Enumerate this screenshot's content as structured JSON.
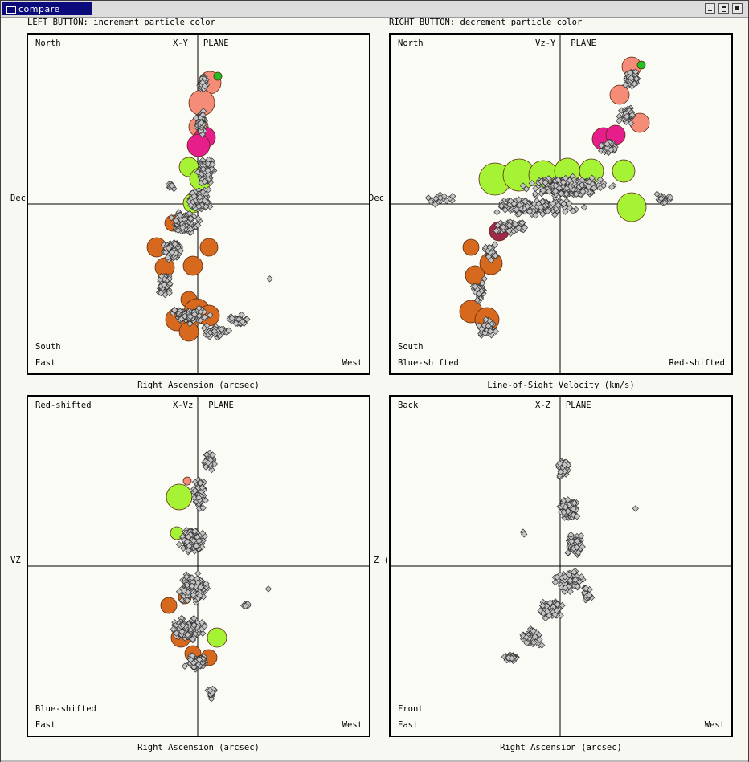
{
  "window": {
    "title": "compare"
  },
  "hints": {
    "left": "LEFT BUTTON: increment particle color",
    "right": "RIGHT BUTTON: decrement particle color"
  },
  "panels": [
    {
      "plane": "X-Y   PLANE",
      "tl": "North",
      "bl1": "South",
      "bl2": "East",
      "br": "West",
      "side": "Dec",
      "axis": "Right Ascension (arcsec)"
    },
    {
      "plane": "Vz-Y   PLANE",
      "tl": "North",
      "bl1": "South",
      "bl2": "Blue-shifted",
      "br": "Red-shifted",
      "side": "Dec",
      "axis": "Line-of-Sight Velocity (km/s)"
    },
    {
      "plane": "X-Vz   PLANE",
      "tl": "Red-shifted",
      "bl1": "Blue-shifted",
      "bl2": "East",
      "br": "West",
      "side": "VZ",
      "axis": "Right Ascension (arcsec)"
    },
    {
      "plane": "X-Z   PLANE",
      "tl": "Back",
      "bl1": "Front",
      "bl2": "East",
      "br": "West",
      "side": "Z (",
      "axis": "Right Ascension (arcsec)"
    }
  ],
  "colors": {
    "particle": "#c4c4c4",
    "orange": "#d6691e",
    "lime": "#a6f235",
    "salmon": "#f58c78",
    "magenta": "#e61e8c",
    "green": "#22c022",
    "maroon": "#a0284a"
  }
}
